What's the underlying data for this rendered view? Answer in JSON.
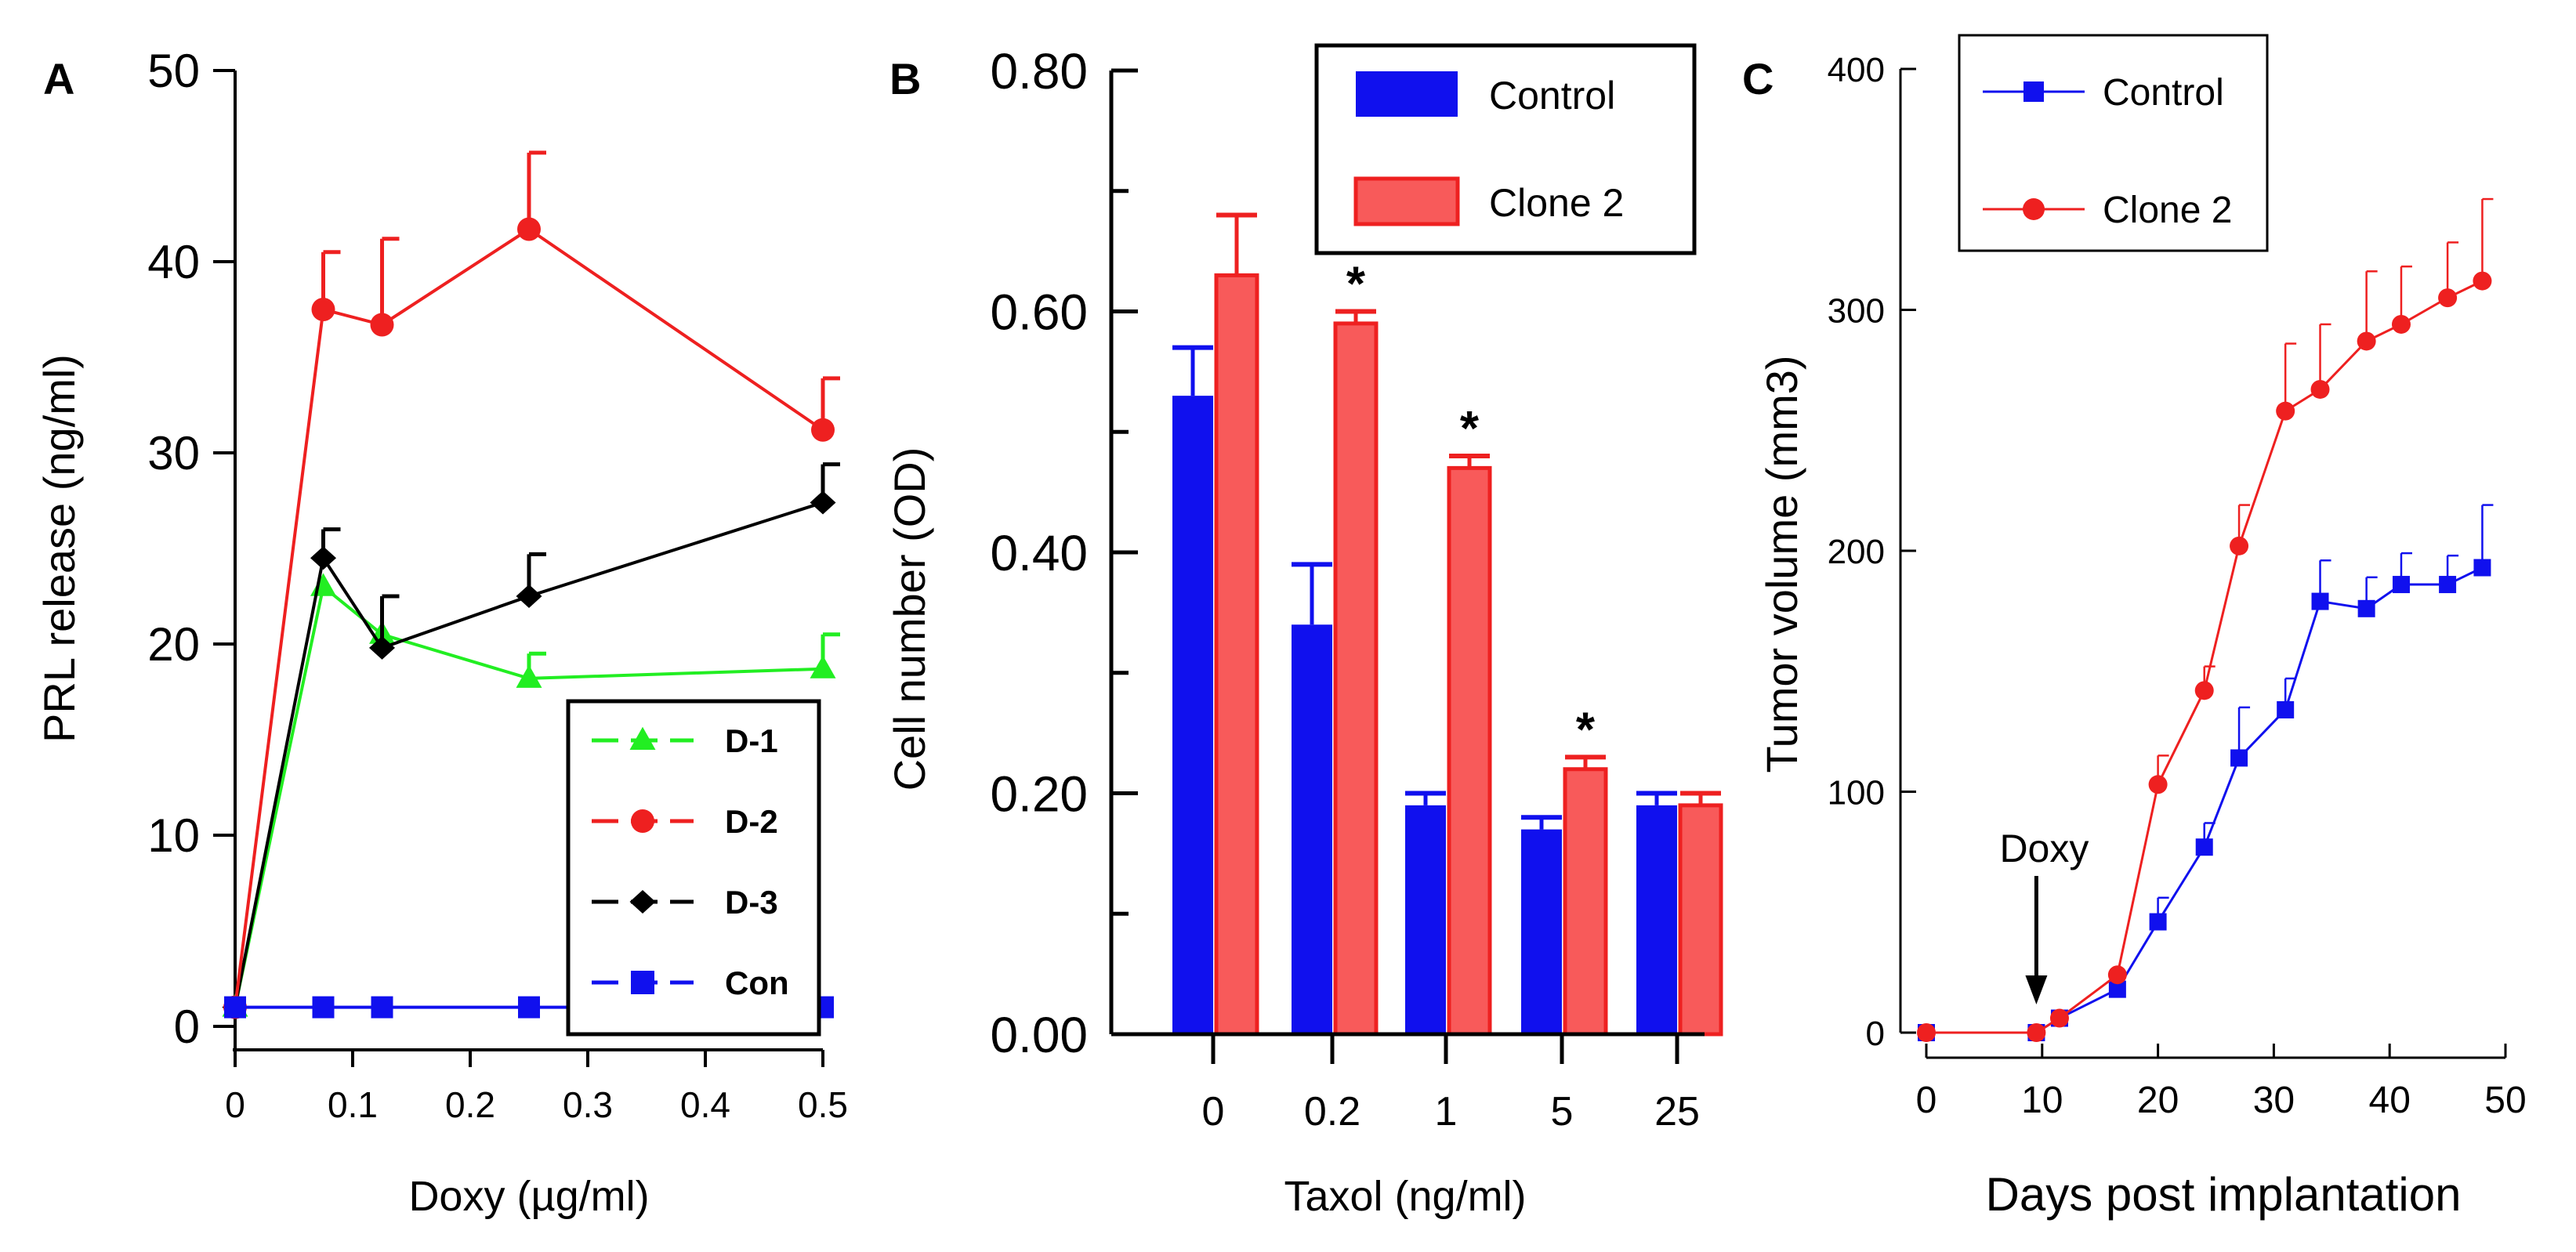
{
  "colors": {
    "green": "#22ee22",
    "red": "#ee2020",
    "black": "#000000",
    "blue": "#1010ee",
    "bar_red_fill": "#f85a5a"
  },
  "chart_data": [
    {
      "panel_label": "A",
      "type": "line",
      "xlabel": "Doxy (µg/ml)",
      "ylabel": "PRL release (ng/ml)",
      "xlim": [
        0,
        0.5
      ],
      "ylim": [
        0,
        50
      ],
      "x_ticks": [
        "0",
        "0.1",
        "0.2",
        "0.3",
        "0.4",
        "0.5"
      ],
      "y_ticks": [
        "0",
        "10",
        "20",
        "30",
        "40",
        "50"
      ],
      "legend_position": "bottom-right",
      "series": [
        {
          "name": "D-1",
          "marker": "triangle",
          "color": "#22ee22",
          "dashed": false,
          "x": [
            0,
            0.075,
            0.125,
            0.25,
            0.5
          ],
          "y": [
            1,
            23.0,
            20.5,
            18.2,
            18.7
          ],
          "err": [
            0,
            0,
            0,
            1.3,
            1.8
          ]
        },
        {
          "name": "D-2",
          "marker": "circle",
          "color": "#ee2020",
          "dashed": false,
          "x": [
            0,
            0.075,
            0.125,
            0.25,
            0.5
          ],
          "y": [
            1,
            37.5,
            36.7,
            41.7,
            31.2
          ],
          "err": [
            0,
            3.0,
            4.5,
            4.0,
            2.7
          ]
        },
        {
          "name": "D-3",
          "marker": "diamond",
          "color": "#000000",
          "dashed": false,
          "x": [
            0,
            0.075,
            0.125,
            0.25,
            0.5
          ],
          "y": [
            1,
            24.5,
            19.8,
            22.5,
            27.4
          ],
          "err": [
            0,
            1.5,
            2.7,
            2.2,
            2.0
          ]
        },
        {
          "name": "Con",
          "marker": "square",
          "color": "#1010ee",
          "dashed": false,
          "x": [
            0,
            0.075,
            0.125,
            0.25,
            0.5
          ],
          "y": [
            1,
            1,
            1,
            1,
            1
          ],
          "err": [
            0,
            0,
            0,
            0,
            0
          ]
        }
      ]
    },
    {
      "panel_label": "B",
      "type": "bar",
      "xlabel": "Taxol (ng/ml)",
      "ylabel": "Cell number (OD)",
      "ylim": [
        0,
        0.8
      ],
      "y_ticks": [
        "0.00",
        "0.20",
        "0.40",
        "0.60",
        "0.80"
      ],
      "categories": [
        "0",
        "0.2",
        "1",
        "5",
        "25"
      ],
      "legend_position": "top-right",
      "series": [
        {
          "name": "Control",
          "color": "#1010ee",
          "values": [
            0.53,
            0.34,
            0.19,
            0.17,
            0.19
          ],
          "err": [
            0.04,
            0.05,
            0.01,
            0.01,
            0.01
          ]
        },
        {
          "name": "Clone 2",
          "color": "#f85a5a",
          "values": [
            0.63,
            0.59,
            0.47,
            0.22,
            0.19
          ],
          "err": [
            0.05,
            0.01,
            0.01,
            0.01,
            0.01
          ]
        }
      ],
      "significance": [
        "",
        "*",
        "*",
        "*",
        ""
      ]
    },
    {
      "panel_label": "C",
      "type": "line",
      "xlabel": "Days post implantation",
      "ylabel": "Tumor volume (mm3)",
      "xlim": [
        0,
        50
      ],
      "ylim": [
        0,
        400
      ],
      "x_ticks": [
        "0",
        "10",
        "20",
        "30",
        "40",
        "50"
      ],
      "y_ticks": [
        "0",
        "100",
        "200",
        "300",
        "400"
      ],
      "legend_position": "top-left",
      "annotation": {
        "text": "Doxy",
        "x": 9.5
      },
      "series": [
        {
          "name": "Control",
          "marker": "square",
          "color": "#1010ee",
          "x": [
            0,
            9.5,
            11.5,
            16.5,
            20,
            24,
            27,
            31,
            34,
            38,
            41,
            45,
            48
          ],
          "y": [
            0,
            0,
            6,
            18,
            46,
            77,
            114,
            134,
            179,
            176,
            186,
            186,
            193
          ],
          "err": [
            0,
            0,
            0,
            0,
            10,
            10,
            21,
            13,
            17,
            13,
            13,
            12,
            26
          ]
        },
        {
          "name": "Clone 2",
          "marker": "circle",
          "color": "#ee2020",
          "x": [
            0,
            9.5,
            11.5,
            16.5,
            20,
            24,
            27,
            31,
            34,
            38,
            41,
            45,
            48
          ],
          "y": [
            0,
            0,
            6,
            24,
            103,
            142,
            202,
            258,
            267,
            287,
            294,
            305,
            312
          ],
          "err": [
            0,
            0,
            0,
            0,
            12,
            10,
            17,
            28,
            27,
            29,
            24,
            23,
            34
          ]
        }
      ]
    }
  ]
}
